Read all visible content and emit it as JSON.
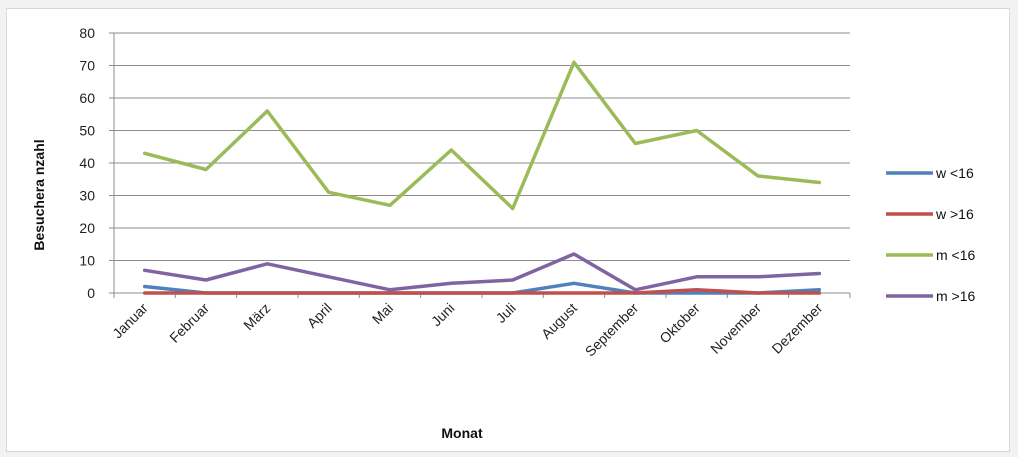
{
  "chart_data": {
    "type": "line",
    "title": "",
    "xlabel": "Monat",
    "ylabel": "Besuchera nzahl",
    "ylim": [
      0,
      80
    ],
    "yticks": [
      0,
      10,
      20,
      30,
      40,
      50,
      60,
      70,
      80
    ],
    "grid": true,
    "legend_position": "right",
    "categories": [
      "Januar",
      "Februar",
      "März",
      "April",
      "Mai",
      "Juni",
      "Juli",
      "August",
      "September",
      "Oktober",
      "November",
      "Dezember"
    ],
    "series": [
      {
        "name": "w <16",
        "color": "#4f81bd",
        "values": [
          2,
          0,
          0,
          0,
          0,
          0,
          0,
          3,
          0,
          0,
          0,
          1
        ]
      },
      {
        "name": "w >16",
        "color": "#c0504d",
        "values": [
          0,
          0,
          0,
          0,
          0,
          0,
          0,
          0,
          0,
          1,
          0,
          0
        ]
      },
      {
        "name": "m <16",
        "color": "#9bbb59",
        "values": [
          43,
          38,
          56,
          31,
          27,
          44,
          26,
          71,
          46,
          50,
          36,
          34
        ]
      },
      {
        "name": "m >16",
        "color": "#8064a2",
        "values": [
          7,
          4,
          9,
          5,
          1,
          3,
          4,
          12,
          1,
          5,
          5,
          6
        ]
      }
    ]
  }
}
